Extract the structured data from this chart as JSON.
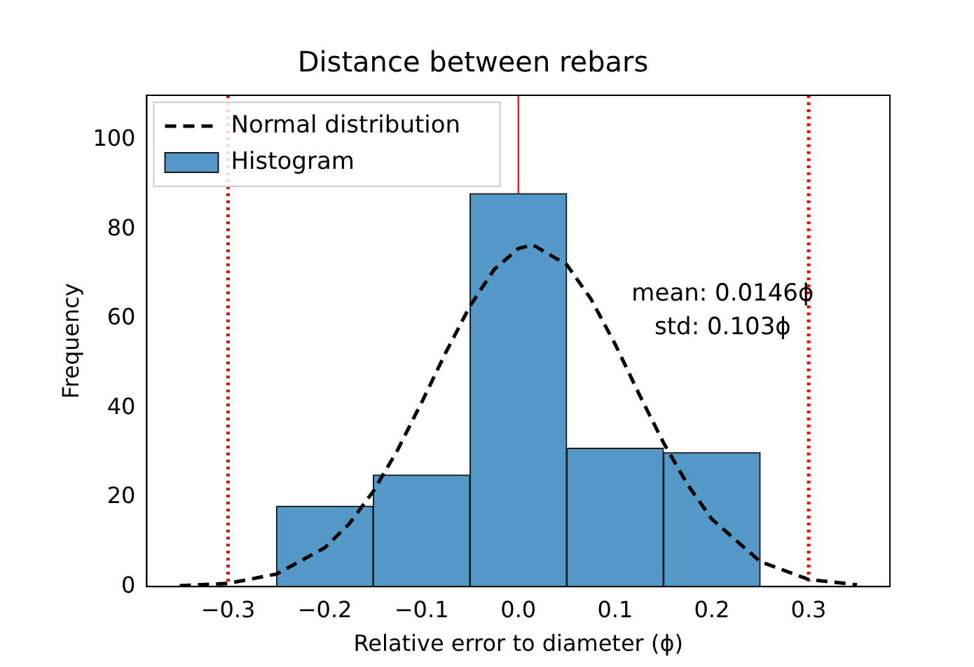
{
  "chart_data": {
    "type": "histogram",
    "title": "Distance between rebars",
    "xlabel": "Relative error to diameter (ϕ)",
    "ylabel": "Frequency",
    "bins": [
      -0.25,
      -0.15,
      -0.05,
      0.05,
      0.15,
      0.25
    ],
    "series": [
      {
        "type": "line",
        "name": "Normal distribution",
        "color": "#000000",
        "line_style": "dashed",
        "marker": "none",
        "x": [
          -0.35,
          -0.3,
          -0.25,
          -0.2,
          -0.175,
          -0.15,
          -0.125,
          -0.1,
          -0.075,
          -0.05,
          -0.025,
          0,
          0.015,
          0.05,
          0.075,
          0.1,
          0.125,
          0.15,
          0.175,
          0.2,
          0.25,
          0.3,
          0.35
        ],
        "values": [
          0.2,
          0.7,
          2.8,
          8.7,
          14,
          21.3,
          30.5,
          41.2,
          52.4,
          62.8,
          71,
          75.7,
          76.5,
          72.1,
          64.4,
          54.3,
          43,
          32.2,
          22.8,
          15.1,
          5.6,
          1.6,
          0.4
        ]
      },
      {
        "name": "Histogram",
        "color": "#5499c7",
        "values": [
          18,
          25,
          88,
          31,
          30
        ]
      }
    ],
    "xlim": [
      -0.384,
      0.384
    ],
    "ylim": [
      0,
      110
    ],
    "xticks": [
      {
        "value": -0.3,
        "label": "−0.3"
      },
      {
        "value": -0.2,
        "label": "−0.2"
      },
      {
        "value": -0.1,
        "label": "−0.1"
      },
      {
        "value": 0,
        "label": "0.0"
      },
      {
        "value": 0.1,
        "label": "0.1"
      },
      {
        "value": 0.2,
        "label": "0.2"
      },
      {
        "value": 0.3,
        "label": "0.3"
      }
    ],
    "yticks": [
      0,
      20,
      40,
      60,
      80,
      100
    ],
    "ref_lines": [
      {
        "axis": "x",
        "value": -0.3,
        "color": "#ff0000",
        "line_style": "dotted"
      },
      {
        "axis": "x",
        "value": 0,
        "color": "#d62728",
        "line_style": "solid"
      },
      {
        "axis": "x",
        "value": 0.3,
        "color": "#ff0000",
        "line_style": "dotted"
      }
    ],
    "annotations": [
      "mean: 0.0146ϕ",
      "std: 0.103ϕ"
    ],
    "legend": "top left",
    "grid": false
  }
}
